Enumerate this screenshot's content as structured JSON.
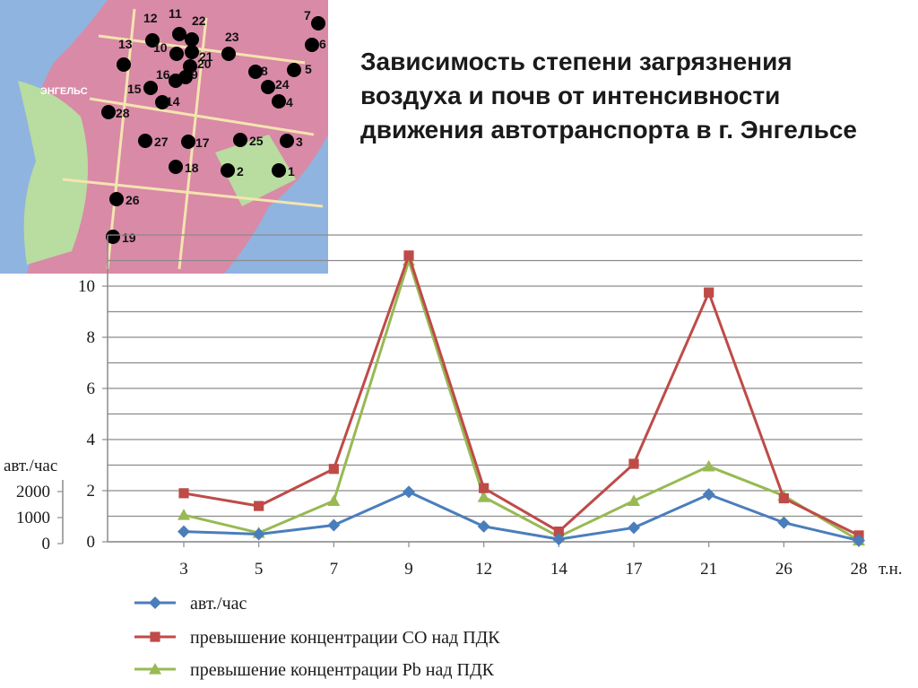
{
  "title": "Зависимость степени загрязнения воздуха и почв от интенсивности движения автотранспорта в г. Энгельсе",
  "map": {
    "city_label": "ЭНГЕЛЬС",
    "points": [
      {
        "label": "12"
      },
      {
        "label": "11"
      },
      {
        "label": "22"
      },
      {
        "label": "7"
      },
      {
        "label": "6"
      },
      {
        "label": "13"
      },
      {
        "label": "10"
      },
      {
        "label": "21"
      },
      {
        "label": "23"
      },
      {
        "label": "20"
      },
      {
        "label": "16"
      },
      {
        "label": "9"
      },
      {
        "label": "8"
      },
      {
        "label": "5"
      },
      {
        "label": "15"
      },
      {
        "label": "14"
      },
      {
        "label": "24"
      },
      {
        "label": "4"
      },
      {
        "label": "28"
      },
      {
        "label": "27"
      },
      {
        "label": "17"
      },
      {
        "label": "25"
      },
      {
        "label": "3"
      },
      {
        "label": "18"
      },
      {
        "label": "2"
      },
      {
        "label": "1"
      },
      {
        "label": "26"
      },
      {
        "label": "19"
      }
    ]
  },
  "chart_data": {
    "type": "line",
    "categories": [
      "3",
      "5",
      "7",
      "9",
      "12",
      "14",
      "17",
      "21",
      "26",
      "28"
    ],
    "x_unit": "т.н.",
    "left_axis_label": "авт./час",
    "y_ticks_primary": [
      "0",
      "2",
      "4",
      "6",
      "8",
      "10"
    ],
    "y_ticks_secondary": [
      "0",
      "1000",
      "2000"
    ],
    "ylim": [
      0,
      12
    ],
    "grid": true,
    "legend_position": "bottom",
    "series": [
      {
        "name": "авт./час",
        "color": "#4a7ebb",
        "marker": "diamond",
        "values": [
          0.4,
          0.3,
          0.65,
          1.95,
          0.6,
          0.1,
          0.55,
          1.85,
          0.75,
          0.05
        ]
      },
      {
        "name": "превышение концентрации CO над ПДК",
        "color": "#be4b48",
        "marker": "square",
        "values": [
          1.9,
          1.4,
          2.85,
          11.2,
          2.1,
          0.4,
          3.05,
          9.75,
          1.7,
          0.25
        ]
      },
      {
        "name": "превышение концентрации Pb над ПДК",
        "color": "#98b954",
        "marker": "triangle",
        "values": [
          1.05,
          0.35,
          1.6,
          11.0,
          1.75,
          0.2,
          1.6,
          2.95,
          1.8,
          0.05
        ]
      }
    ]
  }
}
